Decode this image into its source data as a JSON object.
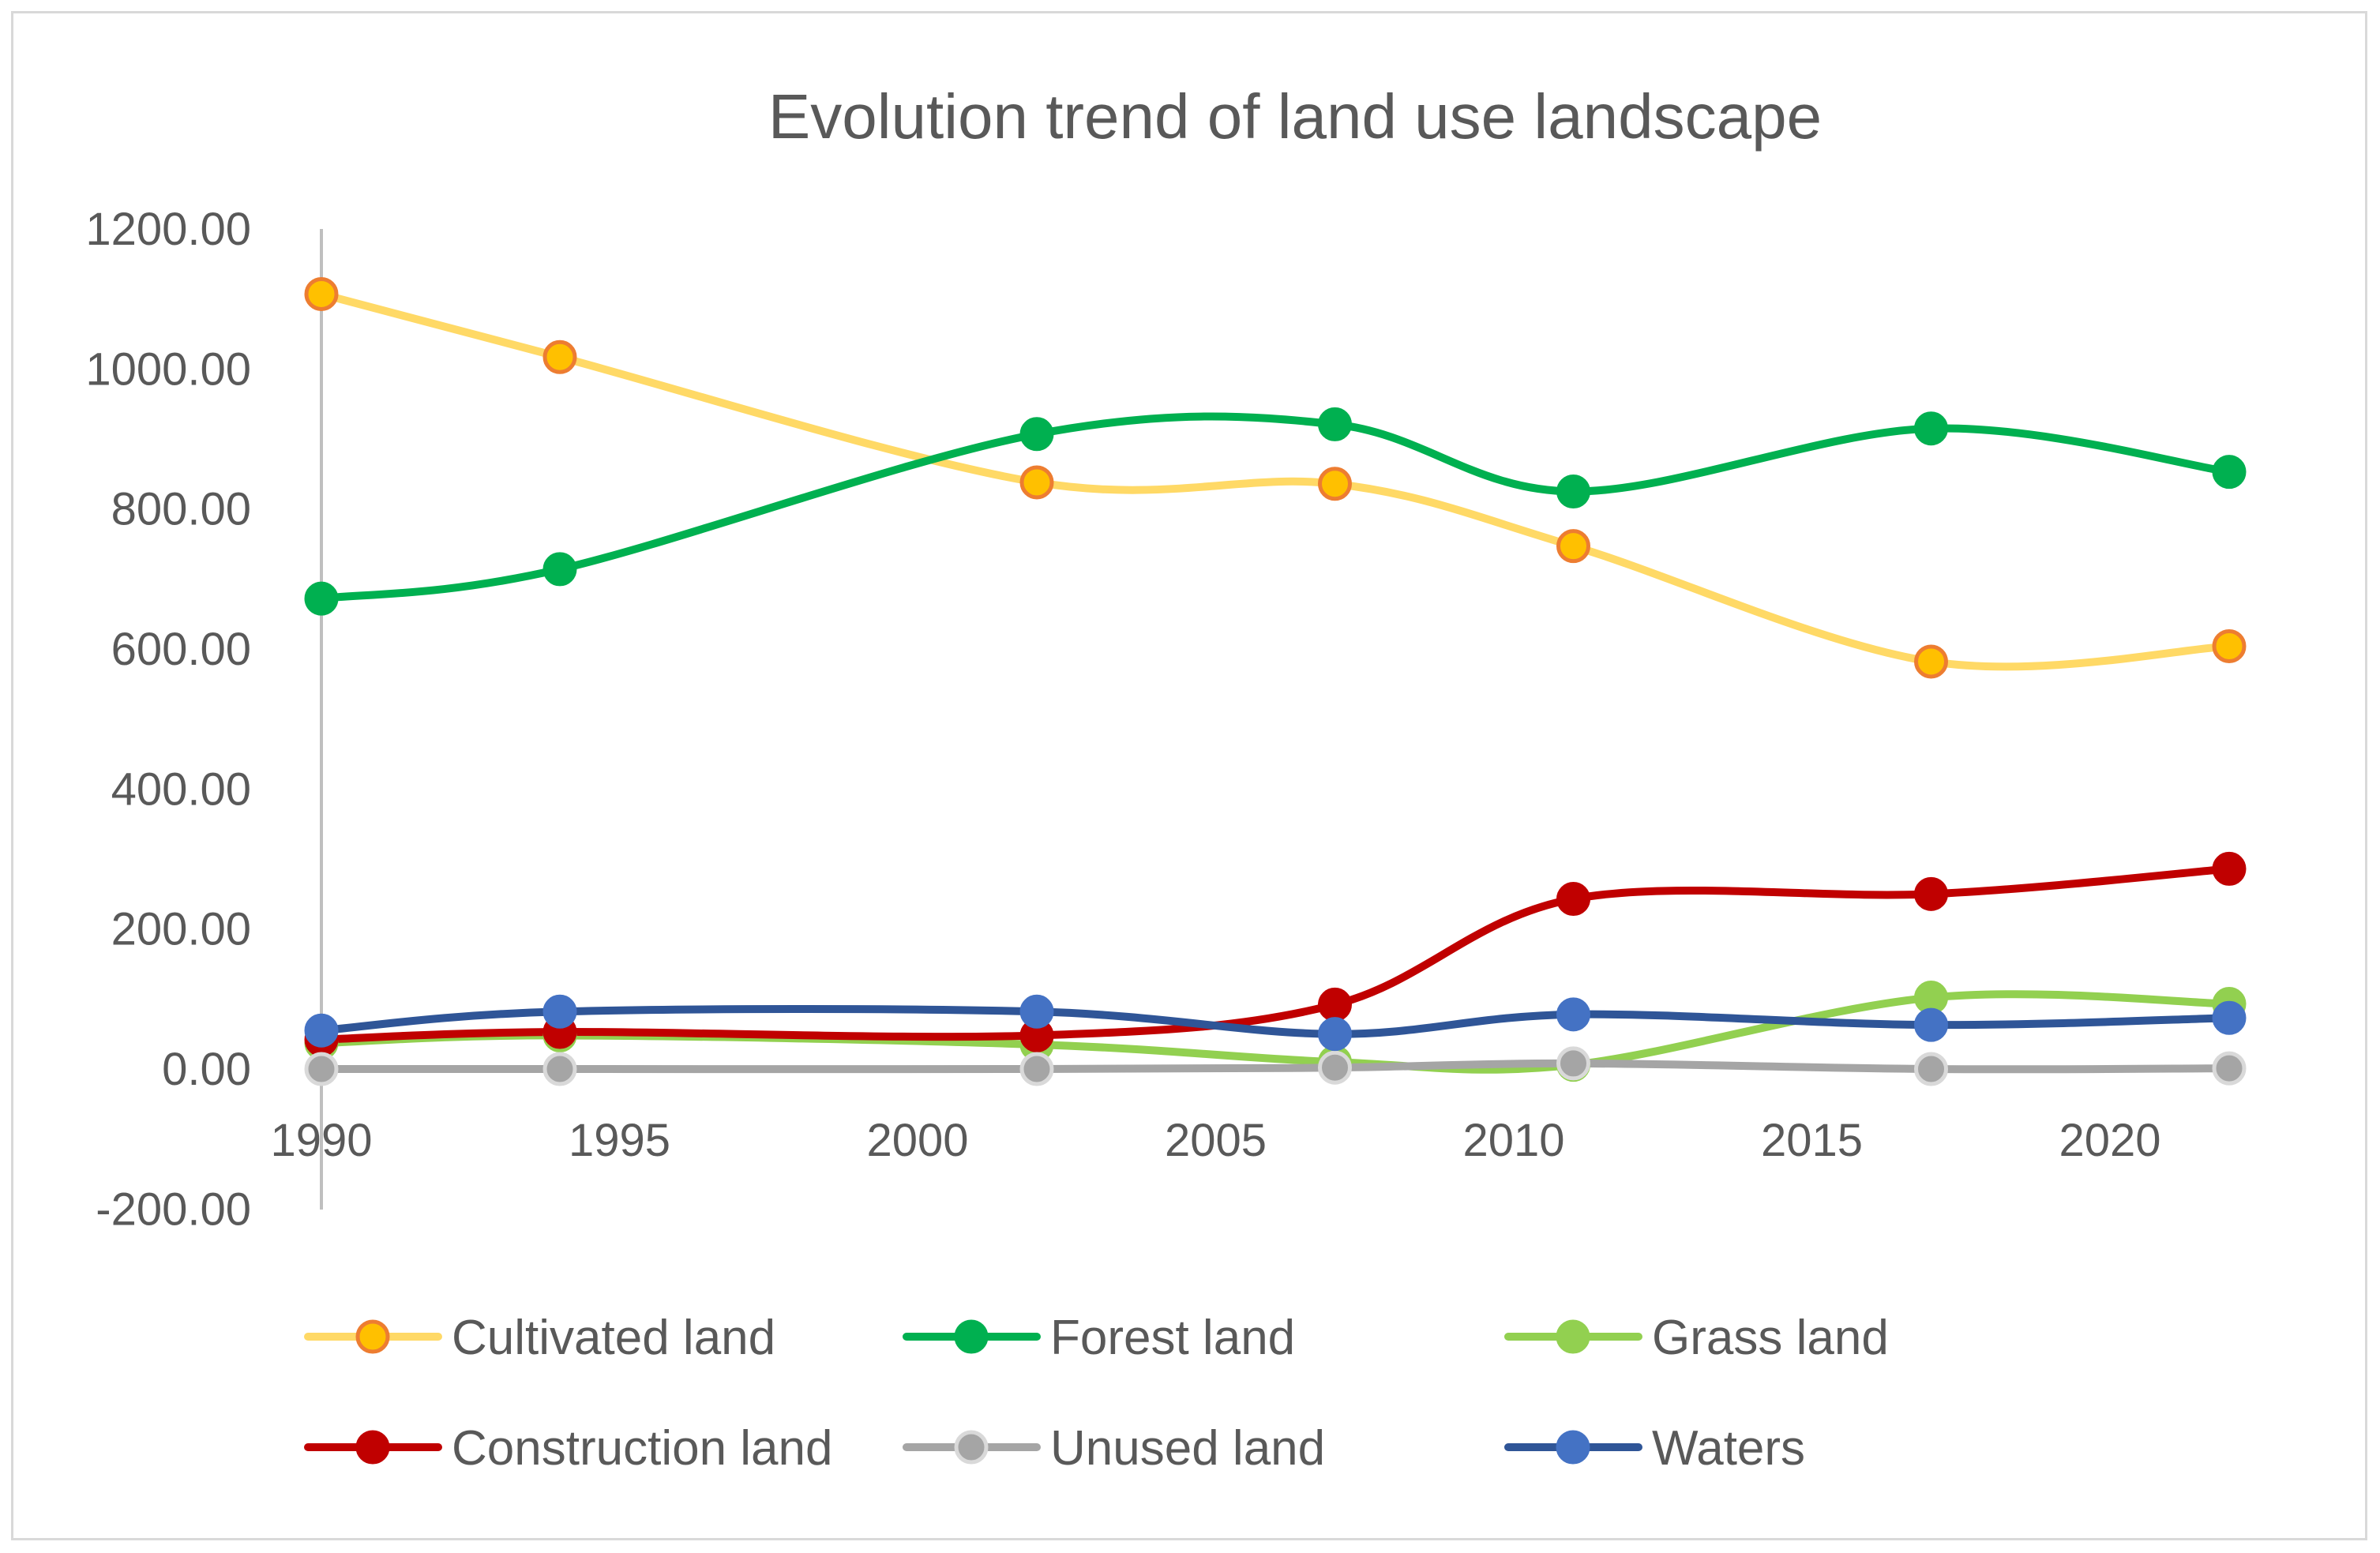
{
  "chart_data": {
    "type": "line",
    "title": "Evolution trend of land use landscape",
    "xlabel": "",
    "ylabel": "",
    "x": [
      1990,
      1994,
      2002,
      2007,
      2011,
      2017,
      2022
    ],
    "xlim": [
      1990,
      2022.5
    ],
    "xticks": [
      1990,
      1995,
      2000,
      2005,
      2010,
      2015,
      2020
    ],
    "xtick_labels": [
      "1990",
      "1995",
      "2000",
      "2005",
      "2010",
      "2015",
      "2020"
    ],
    "ylim": [
      -200,
      1200
    ],
    "yticks": [
      -200,
      0,
      200,
      400,
      600,
      800,
      1000,
      1200
    ],
    "ytick_labels": [
      "-200.00",
      "0.00",
      "200.00",
      "400.00",
      "600.00",
      "800.00",
      "1000.00",
      "1200.00"
    ],
    "grid": false,
    "smooth": true,
    "legend_position": "bottom",
    "series": [
      {
        "name": "Cultivated land",
        "values": [
          1107,
          1017,
          838,
          836,
          747,
          582,
          604
        ],
        "line_color": "#ffd966",
        "marker_fill": "#ffc000",
        "marker_edge": "#ed7d31"
      },
      {
        "name": "Forest land",
        "values": [
          672,
          714,
          907,
          921,
          825,
          915,
          853
        ],
        "line_color": "#00b050",
        "marker_fill": "#00b050",
        "marker_edge": "#00b050"
      },
      {
        "name": "Grass land",
        "values": [
          37,
          48,
          35,
          10,
          6,
          102,
          93
        ],
        "line_color": "#92d050",
        "marker_fill": "#92d050",
        "marker_edge": "#92d050"
      },
      {
        "name": "Construction land",
        "values": [
          42,
          53,
          48,
          92,
          243,
          250,
          286
        ],
        "line_color": "#c00000",
        "marker_fill": "#c00000",
        "marker_edge": "#c00000"
      },
      {
        "name": "Unused land",
        "values": [
          0,
          0,
          0,
          2,
          8,
          0,
          1
        ],
        "line_color": "#a5a5a5",
        "marker_fill": "#a5a5a5",
        "marker_edge": "#d9d9d9"
      },
      {
        "name": "Waters",
        "values": [
          55,
          82,
          82,
          50,
          78,
          63,
          73
        ],
        "line_color": "#2f5597",
        "marker_fill": "#4472c4",
        "marker_edge": "#4472c4"
      }
    ]
  }
}
